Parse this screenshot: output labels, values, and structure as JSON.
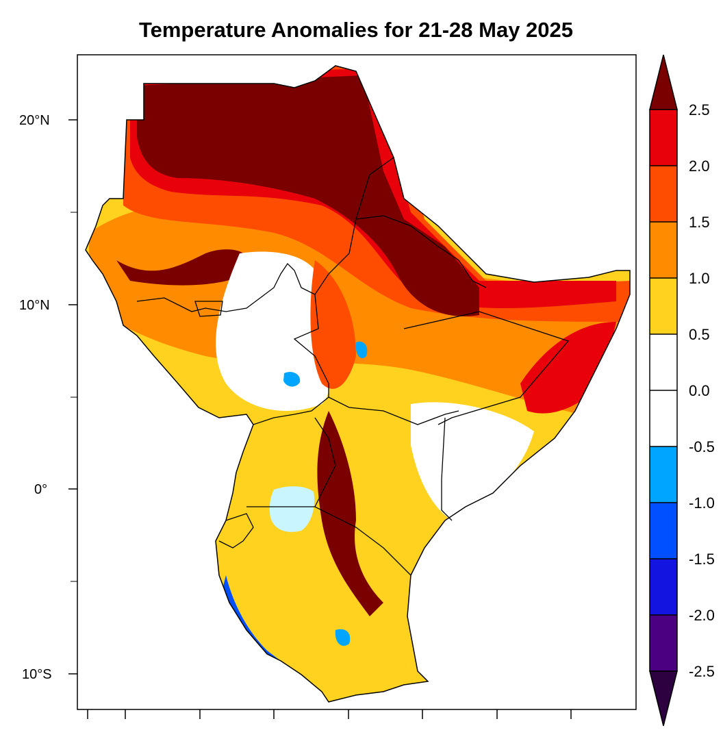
{
  "title": "Temperature Anomalies for 21-28 May 2025",
  "axes": {
    "lat_ticks": [
      {
        "value": 20,
        "label": "20°N"
      },
      {
        "value": 10,
        "label": "10°N"
      },
      {
        "value": 0,
        "label": "0°"
      },
      {
        "value": -10,
        "label": "10°S"
      }
    ],
    "lon_ticks_count": 8
  },
  "colorbar": {
    "labels": [
      "2.5",
      "2.0",
      "1.5",
      "1.0",
      "0.5",
      "0.0",
      "-0.5",
      "-1.0",
      "-1.5",
      "-2.0",
      "-2.5"
    ],
    "colors": [
      "#7a0000",
      "#e8000b",
      "#ff4d00",
      "#ff8c00",
      "#ffd21f",
      "#ffffff",
      "#ffffff",
      "#00a5ff",
      "#0050ff",
      "#1414e0",
      "#4b0082",
      "#2d0040"
    ]
  },
  "palette": {
    "hot_dark": "#7a0000",
    "hot": "#e8000b",
    "warm": "#ff4d00",
    "orange": "#ff8c00",
    "yellow": "#ffd21f",
    "neutral": "#ffffff",
    "cool": "#00a5ff",
    "cold": "#0050ff",
    "lake": "#c8f5ff"
  }
}
